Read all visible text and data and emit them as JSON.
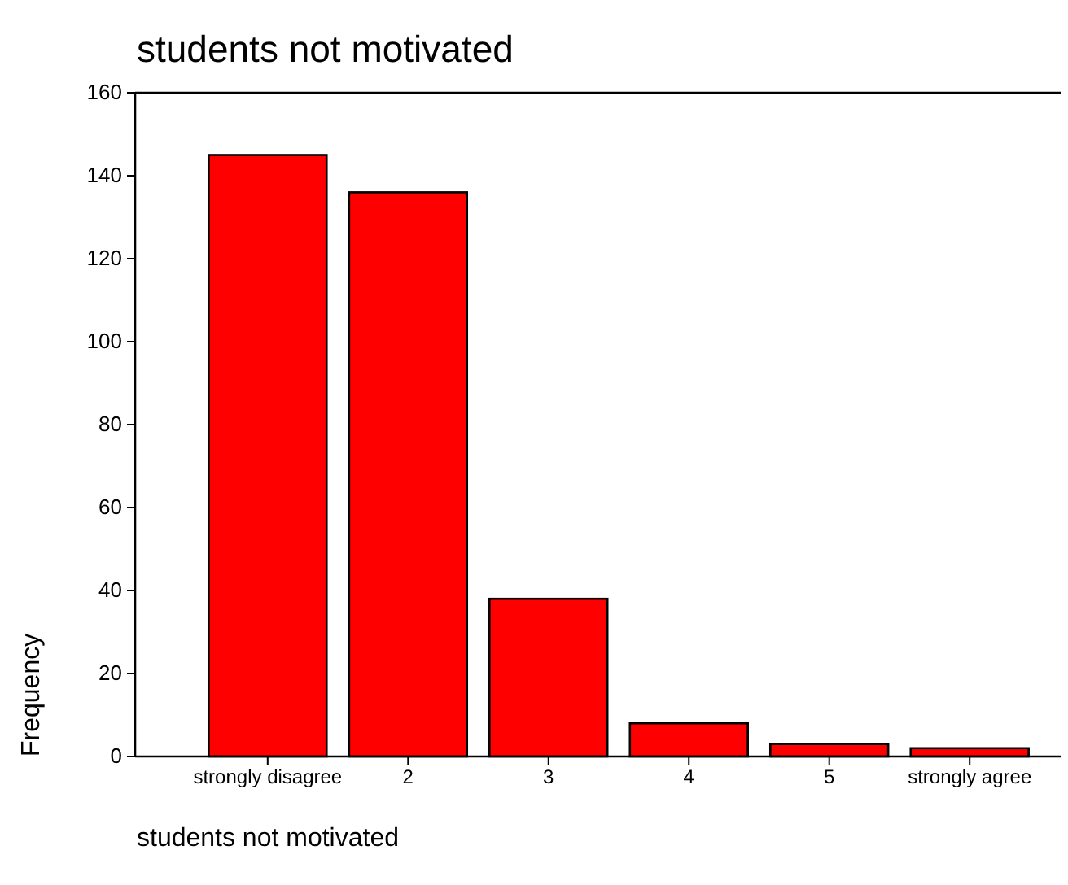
{
  "chart_data": {
    "type": "bar",
    "title": "students not motivated",
    "xlabel": "students not motivated",
    "ylabel": "Frequency",
    "categories": [
      "strongly disagree",
      "2",
      "3",
      "4",
      "5",
      "strongly agree"
    ],
    "values": [
      145,
      136,
      38,
      8,
      3,
      2
    ],
    "color": "#ff0000",
    "ylim": [
      0,
      160
    ],
    "yticks": [
      0,
      20,
      40,
      60,
      80,
      100,
      120,
      140,
      160
    ],
    "grid": false
  }
}
